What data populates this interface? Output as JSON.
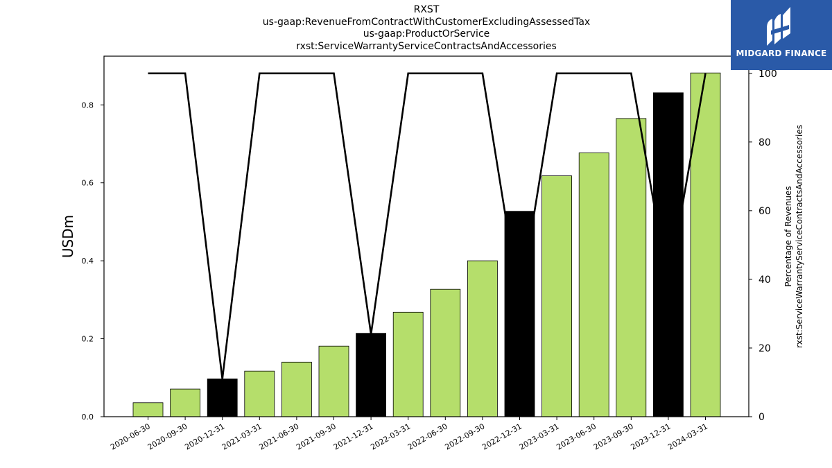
{
  "chart_data": {
    "type": "bar",
    "title_lines": [
      "RXST",
      "us-gaap:RevenueFromContractWithCustomerExcludingAssessedTax",
      "us-gaap:ProductOrService",
      "rxst:ServiceWarrantyServiceContractsAndAccessories"
    ],
    "categories": [
      "2020-06-30",
      "2020-09-30",
      "2020-12-31",
      "2021-03-31",
      "2021-06-30",
      "2021-09-30",
      "2021-12-31",
      "2022-03-31",
      "2022-06-30",
      "2022-09-30",
      "2022-12-31",
      "2023-03-31",
      "2023-06-30",
      "2023-09-30",
      "2023-12-31",
      "2024-03-31"
    ],
    "values": [
      0.036,
      0.071,
      0.097,
      0.117,
      0.14,
      0.181,
      0.214,
      0.268,
      0.327,
      0.4,
      0.527,
      0.618,
      0.677,
      0.765,
      0.831,
      0.882
    ],
    "annual_flags": [
      false,
      false,
      true,
      false,
      false,
      false,
      true,
      false,
      false,
      false,
      true,
      false,
      false,
      false,
      true,
      false
    ],
    "bar_colors": {
      "quarterly": "#b5de6b",
      "annual": "#000000"
    },
    "line_series": {
      "values": [
        100,
        100,
        11,
        100,
        100,
        100,
        24,
        100,
        100,
        100,
        33,
        100,
        100,
        100,
        38,
        100
      ],
      "color": "#000000"
    },
    "ylabel": "USDm",
    "ylabel_right": [
      "Percentage of Revenues",
      "rxst:ServiceWarrantyServiceContractsAndAccessories"
    ],
    "ylim": [
      0,
      0.925
    ],
    "yticks": [
      "0.0",
      "0.2",
      "0.4",
      "0.6",
      "0.8"
    ],
    "ylim_right": [
      0,
      105
    ],
    "yticks_right": [
      "0",
      "20",
      "40",
      "60",
      "80",
      "100"
    ],
    "grid": false
  },
  "logo": {
    "text": "MIDGARD FINANCE"
  }
}
